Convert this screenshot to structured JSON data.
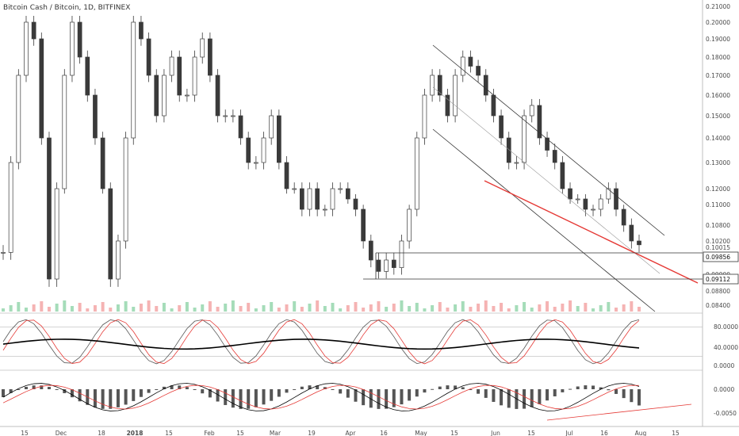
{
  "chart_data": {
    "title": "Bitcoin Cash / Bitcoin, 1D, BITFINEX",
    "price_panel": {
      "type": "candlestick",
      "y_ticks": [
        "0.21000",
        "0.20000",
        "0.19000",
        "0.18000",
        "0.17000",
        "0.16000",
        "0.15000",
        "0.14000",
        "0.13000",
        "0.12000",
        "0.11000",
        "0.10800",
        "0.10200",
        "0.10015",
        "0.09900",
        "0.08800",
        "0.08400"
      ],
      "price_tags": [
        {
          "label": "0.09856",
          "style": "outline"
        },
        {
          "label": "0.09112",
          "style": "outline"
        }
      ],
      "closes": [
        0.097,
        0.13,
        0.17,
        0.2,
        0.19,
        0.14,
        0.09,
        0.12,
        0.17,
        0.2,
        0.18,
        0.16,
        0.14,
        0.12,
        0.09,
        0.1,
        0.14,
        0.2,
        0.19,
        0.17,
        0.15,
        0.17,
        0.18,
        0.16,
        0.16,
        0.18,
        0.19,
        0.17,
        0.15,
        0.15,
        0.15,
        0.14,
        0.13,
        0.13,
        0.14,
        0.15,
        0.13,
        0.12,
        0.12,
        0.11,
        0.12,
        0.11,
        0.11,
        0.12,
        0.12,
        0.115,
        0.11,
        0.1,
        0.095,
        0.092,
        0.095,
        0.093,
        0.1,
        0.11,
        0.14,
        0.16,
        0.17,
        0.16,
        0.15,
        0.17,
        0.18,
        0.175,
        0.17,
        0.16,
        0.15,
        0.14,
        0.13,
        0.13,
        0.15,
        0.155,
        0.14,
        0.135,
        0.13,
        0.12,
        0.115,
        0.115,
        0.11,
        0.11,
        0.115,
        0.12,
        0.11,
        0.105,
        0.1,
        0.099
      ]
    },
    "stoch_rsi_panel": {
      "y_ticks": [
        "80.0000",
        "40.0000",
        "0.0000"
      ]
    },
    "macd_panel": {
      "y_ticks": [
        "0.0000",
        "-0.0050"
      ]
    },
    "x_ticks": [
      {
        "label": "15"
      },
      {
        "label": "Dec"
      },
      {
        "label": "18"
      },
      {
        "label": "2018",
        "bold": true
      },
      {
        "label": "15"
      },
      {
        "label": "Feb"
      },
      {
        "label": "15"
      },
      {
        "label": "Mar"
      },
      {
        "label": "19"
      },
      {
        "label": "Apr"
      },
      {
        "label": "16"
      },
      {
        "label": "May"
      },
      {
        "label": "15"
      },
      {
        "label": "Jun"
      },
      {
        "label": "15"
      },
      {
        "label": "Jul"
      },
      {
        "label": "16"
      },
      {
        "label": "Aug"
      },
      {
        "label": "15"
      }
    ],
    "colors": {
      "candle": "#3a3a3a",
      "trend_red": "#e53935",
      "channel": "#333333",
      "grid": "#e6e6e6",
      "stoch_k": "#000000",
      "stoch_d": "#e53935",
      "volume_up": "#8fd3a8",
      "volume_down": "#f2a0a0"
    }
  }
}
